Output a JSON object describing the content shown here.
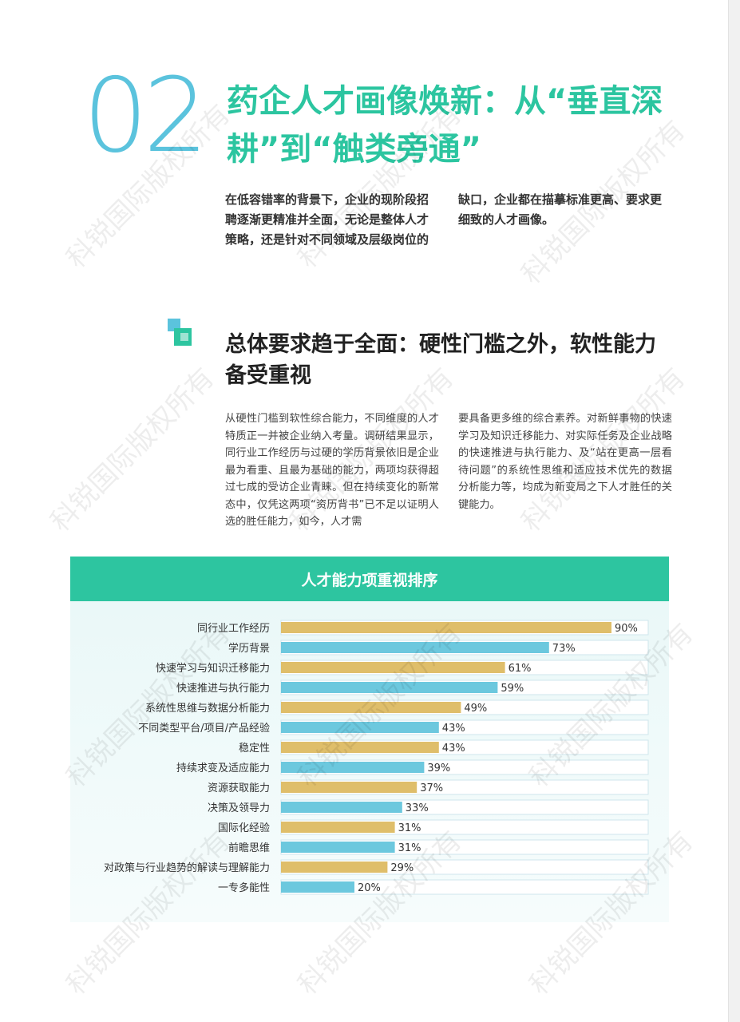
{
  "section": {
    "number": "02",
    "title": "药企人才画像焕新：从“垂直深耕”到“触类旁通”"
  },
  "intro": {
    "col1": "在低容错率的背景下，企业的现阶段招聘逐渐更精准并全面，无论是整体人才策略，还是针对不同领域及层级岗位的",
    "col2": "缺口，企业都在描摹标准更高、要求更细致的人才画像。"
  },
  "subsection": {
    "title": "总体要求趋于全面：硬性门槛之外，软性能力备受重视",
    "col1": "从硬性门槛到软性综合能力，不同维度的人才特质正一并被企业纳入考量。调研结果显示，同行业工作经历与过硬的学历背景依旧是企业最为看重、且最为基础的能力，两项均获得超过七成的受访企业青睐。但在持续变化的新常态中，仅凭这两项“资历背书”已不足以证明人选的胜任能力，如今，人才需",
    "col2": "要具备更多维的综合素养。对新鲜事物的快速学习及知识迁移能力、对实际任务及企业战略的快速推进与执行能力、及“站在更高一层看待问题”的系统性思维和适应技术优先的数据分析能力等，均成为新变局之下人才胜任的关键能力。"
  },
  "watermark": "科锐国际版权所有",
  "colors": {
    "teal": "#2dc5a0",
    "blue": "#5bc3dd",
    "gold": "#dfbe6a",
    "bar_blue": "#6cc8de"
  },
  "chart_data": {
    "type": "bar",
    "orientation": "horizontal",
    "title": "人才能力项重视排序",
    "categories": [
      "同行业工作经历",
      "学历背景",
      "快速学习与知识迁移能力",
      "快速推进与执行能力",
      "系统性思维与数据分析能力",
      "不同类型平台/项目/产品经验",
      "稳定性",
      "持续求变及适应能力",
      "资源获取能力",
      "决策及领导力",
      "国际化经验",
      "前瞻思维",
      "对政策与行业趋势的解读与理解能力",
      "一专多能性"
    ],
    "values": [
      90,
      73,
      61,
      59,
      49,
      43,
      43,
      39,
      37,
      33,
      31,
      31,
      29,
      20
    ],
    "value_labels": [
      "90%",
      "73%",
      "61%",
      "59%",
      "49%",
      "43%",
      "43%",
      "39%",
      "37%",
      "33%",
      "31%",
      "31%",
      "29%",
      "20%"
    ],
    "bar_colors": [
      "#dfbe6a",
      "#6cc8de",
      "#dfbe6a",
      "#6cc8de",
      "#dfbe6a",
      "#6cc8de",
      "#dfbe6a",
      "#6cc8de",
      "#dfbe6a",
      "#6cc8de",
      "#dfbe6a",
      "#6cc8de",
      "#dfbe6a",
      "#6cc8de"
    ],
    "xlim": [
      0,
      100
    ],
    "grid": false,
    "legend": "none"
  }
}
